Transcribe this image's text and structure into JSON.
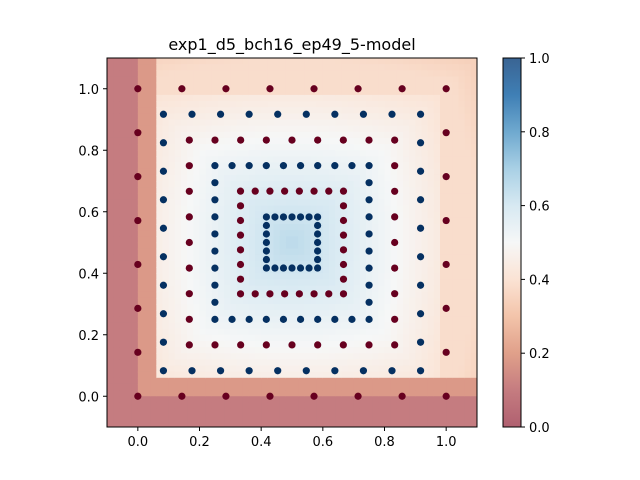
{
  "chart_data": {
    "type": "scatter",
    "title": "exp1_d5_bch16_ep49_5-model",
    "xlabel": "",
    "ylabel": "",
    "xlim": [
      -0.1,
      1.1
    ],
    "ylim": [
      -0.1,
      1.1
    ],
    "x_ticks": [
      "0.0",
      "0.2",
      "0.4",
      "0.6",
      "0.8",
      "1.0"
    ],
    "y_ticks": [
      "0.0",
      "0.2",
      "0.4",
      "0.6",
      "0.8",
      "1.0"
    ],
    "colorbar": {
      "range": [
        0.0,
        1.0
      ],
      "ticks": [
        "0.0",
        "0.2",
        "0.4",
        "0.6",
        "0.8",
        "1.0"
      ],
      "colormap": "RdBu"
    },
    "background": {
      "description_value_low": 0.25,
      "value_high": 0.66,
      "boundary_x": 0.07,
      "boundary_y": 0.07,
      "center": [
        0.5,
        0.5
      ]
    },
    "class_colors": {
      "class0": "#67001f",
      "class1": "#053061"
    },
    "squares": [
      {
        "half": 0.5,
        "n": 8,
        "class": 0
      },
      {
        "half": 0.417,
        "n": 10,
        "class": 1
      },
      {
        "half": 0.333,
        "n": 9,
        "class": 0
      },
      {
        "half": 0.25,
        "n": 10,
        "class": 1
      },
      {
        "half": 0.167,
        "n": 8,
        "class": 0
      },
      {
        "half": 0.083,
        "n": 7,
        "class": 1
      }
    ]
  }
}
